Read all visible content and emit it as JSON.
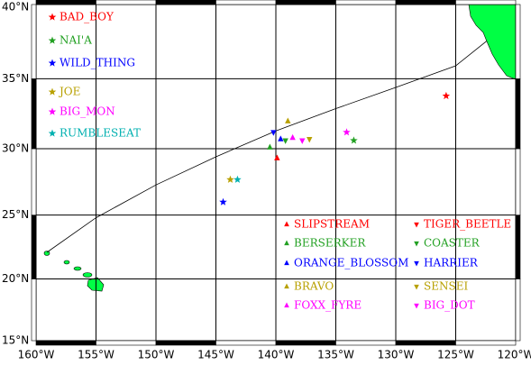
{
  "chart_data": {
    "type": "map",
    "projection": "mercator",
    "xlim": [
      -160,
      -120
    ],
    "ylim": [
      15,
      40
    ],
    "xticks": [
      {
        "value": -160,
        "label": "160°W"
      },
      {
        "value": -155,
        "label": "155°W"
      },
      {
        "value": -150,
        "label": "150°W"
      },
      {
        "value": -145,
        "label": "145°W"
      },
      {
        "value": -140,
        "label": "140°W"
      },
      {
        "value": -135,
        "label": "135°W"
      },
      {
        "value": -130,
        "label": "130°W"
      },
      {
        "value": -125,
        "label": "125°W"
      },
      {
        "value": -120,
        "label": "120°W"
      }
    ],
    "yticks": [
      {
        "value": 15,
        "label": "15°N"
      },
      {
        "value": 20,
        "label": "20°N"
      },
      {
        "value": 25,
        "label": "25°N"
      },
      {
        "value": 30,
        "label": "30°N"
      },
      {
        "value": 35,
        "label": "35°N"
      },
      {
        "value": 40,
        "label": "40°N"
      }
    ],
    "grid": true,
    "track": {
      "color": "#000000",
      "x": [
        -159.1,
        -155,
        -150,
        -145,
        -140,
        -135,
        -130,
        -125,
        -122.4
      ],
      "y": [
        22.1,
        24.8,
        27.3,
        29.4,
        31.3,
        32.9,
        34.4,
        35.9,
        37.6
      ]
    },
    "series": [
      {
        "name": "BAD_BOY",
        "color": "#ff0000",
        "marker": "star",
        "x": [
          -125.8
        ],
        "y": [
          33.8
        ]
      },
      {
        "name": "NAI'A",
        "color": "#22a022",
        "marker": "star",
        "x": [
          -133.5
        ],
        "y": [
          30.6
        ]
      },
      {
        "name": "WILD_THING",
        "color": "#0000ff",
        "marker": "star",
        "x": [
          -144.4
        ],
        "y": [
          26.0
        ]
      },
      {
        "name": "JOE",
        "color": "#b8a000",
        "marker": "star",
        "x": [
          -143.8
        ],
        "y": [
          27.7
        ]
      },
      {
        "name": "BIG_MON",
        "color": "#ff00ff",
        "marker": "star",
        "x": [
          -134.1
        ],
        "y": [
          31.2
        ]
      },
      {
        "name": "RUMBLESEAT",
        "color": "#00b0b0",
        "marker": "star",
        "x": [
          -143.2
        ],
        "y": [
          27.7
        ]
      },
      {
        "name": "SLIPSTREAM",
        "color": "#ff0000",
        "marker": "triangle-up",
        "x": [
          -139.9
        ],
        "y": [
          29.3
        ]
      },
      {
        "name": "TIGER_BEETLE",
        "color": "#ff0000",
        "marker": "triangle-down",
        "x": [],
        "y": []
      },
      {
        "name": "BERSERKER",
        "color": "#22a022",
        "marker": "triangle-up",
        "x": [
          -140.5
        ],
        "y": [
          30.1
        ]
      },
      {
        "name": "COASTER",
        "color": "#22a022",
        "marker": "triangle-down",
        "x": [
          -139.2
        ],
        "y": [
          30.6
        ]
      },
      {
        "name": "ORANGE_BLOSSOM",
        "color": "#0000ff",
        "marker": "triangle-up",
        "x": [
          -139.6
        ],
        "y": [
          30.7
        ]
      },
      {
        "name": "HARRIER",
        "color": "#0000ff",
        "marker": "triangle-down",
        "x": [
          -140.2
        ],
        "y": [
          31.2
        ]
      },
      {
        "name": "BRAVO",
        "color": "#b8a000",
        "marker": "triangle-up",
        "x": [
          -139.0
        ],
        "y": [
          32.0
        ]
      },
      {
        "name": "SENSEI",
        "color": "#b8a000",
        "marker": "triangle-down",
        "x": [
          -137.2
        ],
        "y": [
          30.7
        ]
      },
      {
        "name": "FOXX_FYRE",
        "color": "#ff00ff",
        "marker": "triangle-up",
        "x": [
          -138.6
        ],
        "y": [
          30.8
        ]
      },
      {
        "name": "BIG_DOT",
        "color": "#ff00ff",
        "marker": "triangle-down",
        "x": [
          -137.8
        ],
        "y": [
          30.6
        ]
      }
    ]
  }
}
